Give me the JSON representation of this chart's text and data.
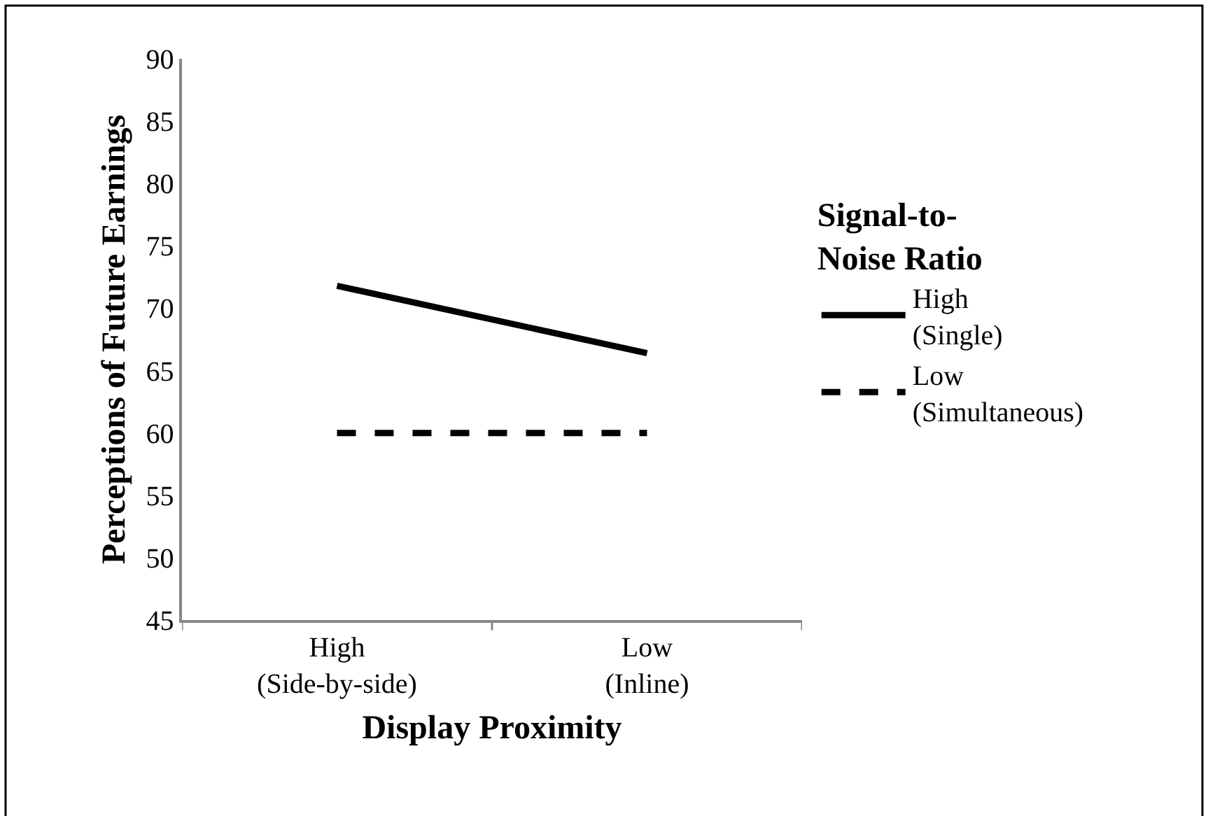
{
  "chart_data": {
    "type": "line",
    "xlabel": "Display Proximity",
    "ylabel": "Perceptions of Future Earnings",
    "legend_title": "Signal-to-\nNoise Ratio",
    "categories": [
      "High\n(Side-by-side)",
      "Low\n(Inline)"
    ],
    "series": [
      {
        "name": "High\n(Single)",
        "color": "#000000",
        "values": [
          71.8,
          66.4
        ],
        "line_style": "solid"
      },
      {
        "name": "Low\n(Simultaneous)",
        "color": "#000000",
        "values": [
          60,
          60
        ],
        "line_style": "dashed"
      }
    ],
    "ylim": [
      45,
      90
    ],
    "yticks": [
      45,
      50,
      55,
      60,
      65,
      70,
      75,
      80,
      85,
      90
    ],
    "legend": "right",
    "marker": "none"
  }
}
